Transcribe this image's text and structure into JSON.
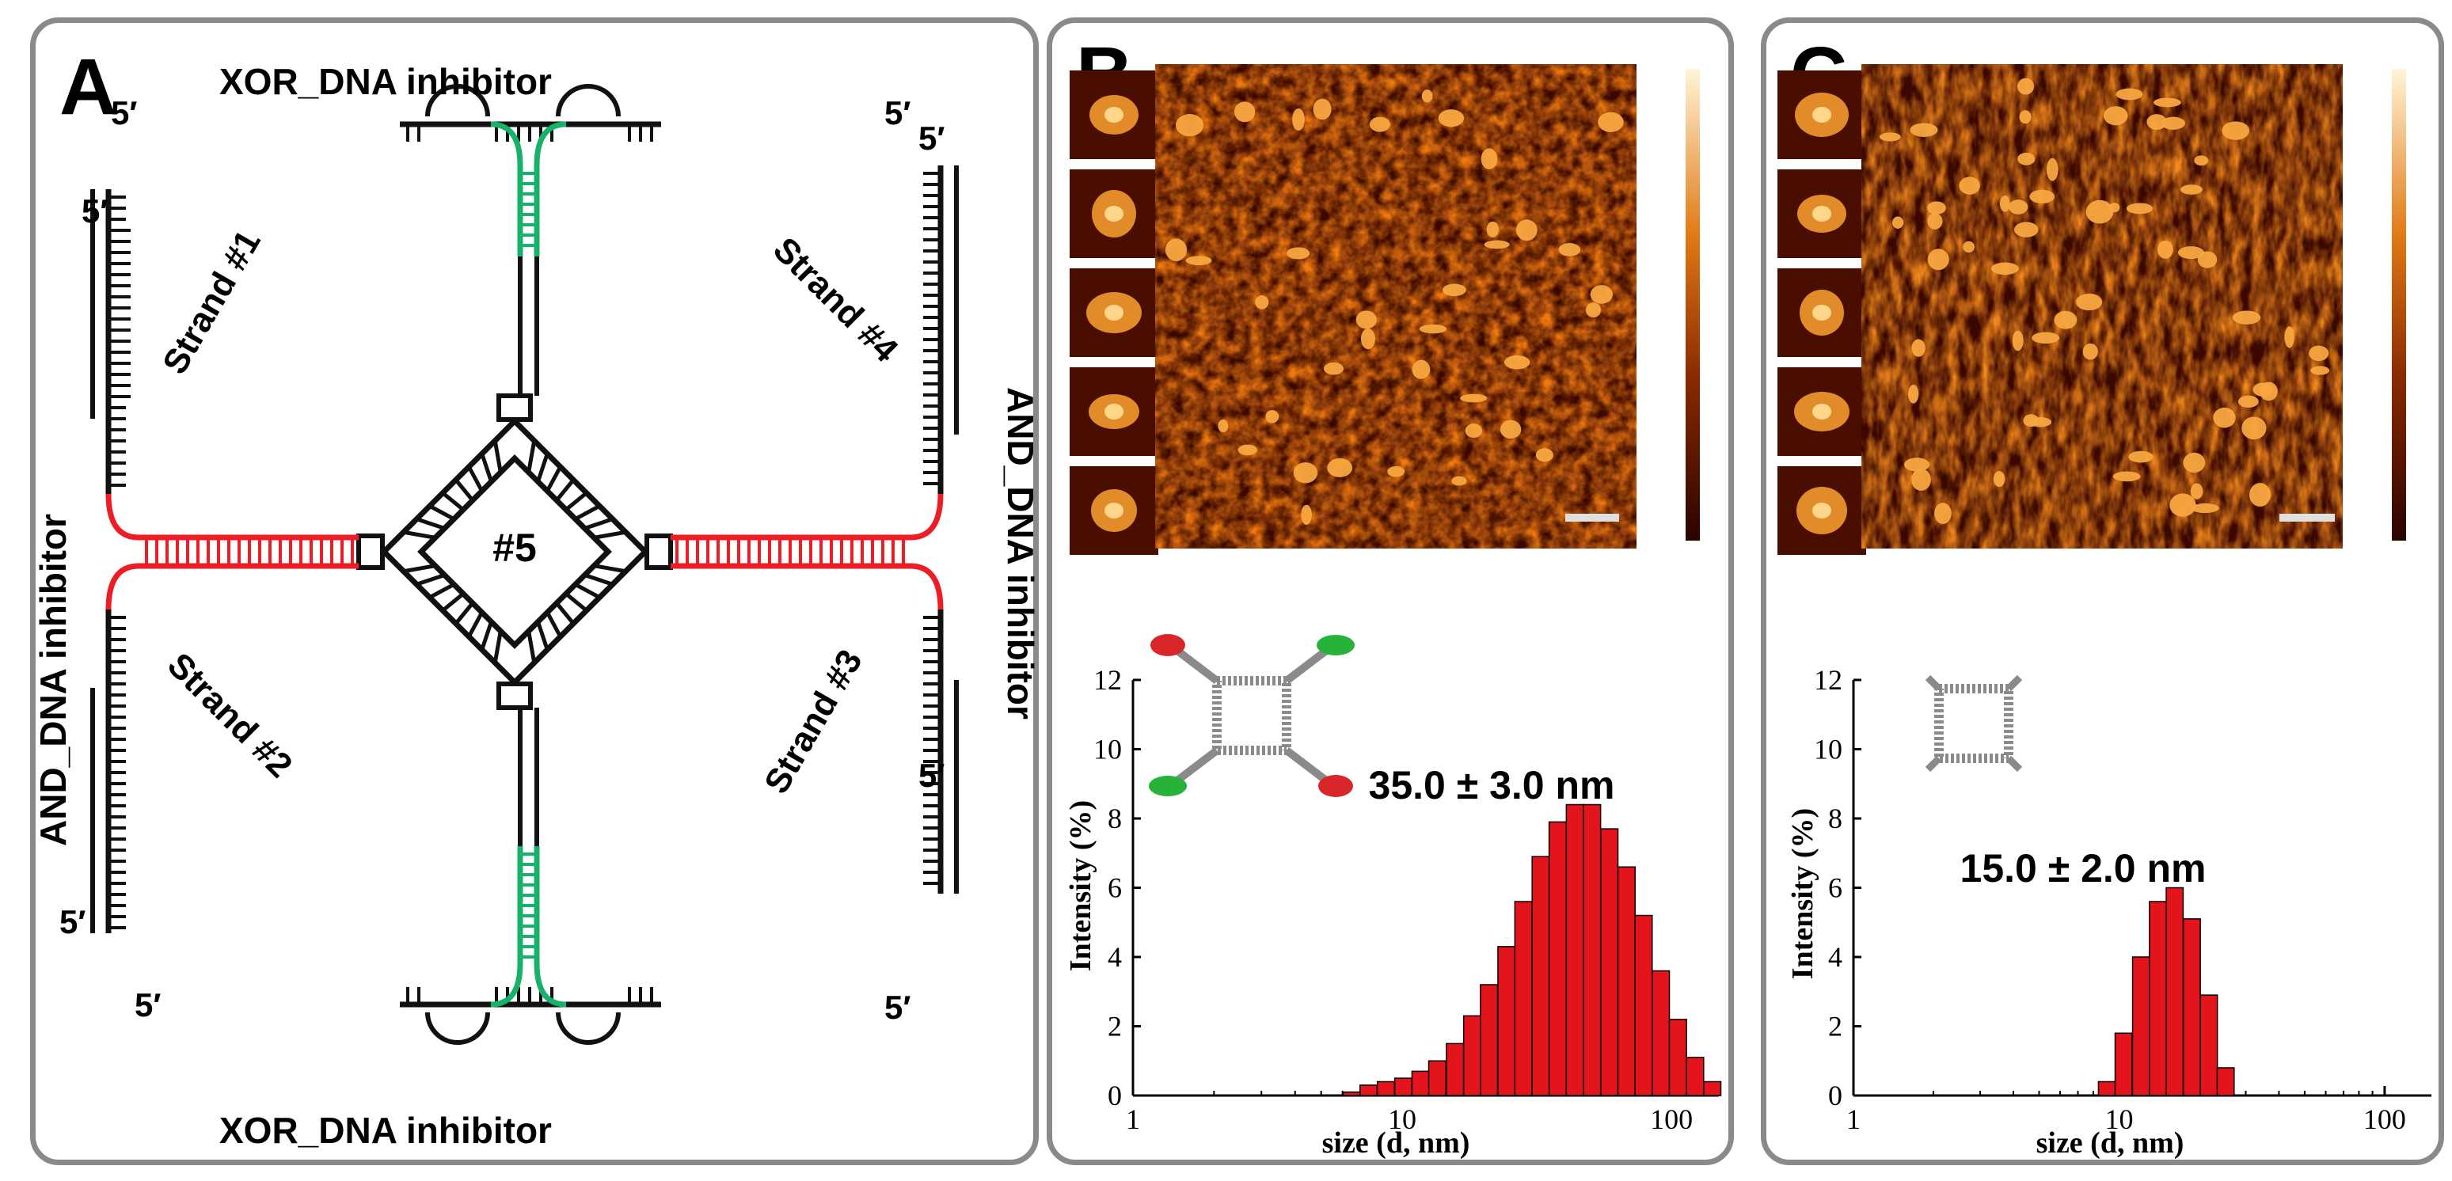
{
  "panels": {
    "a": {
      "letter": "A",
      "top_label": "XOR_DNA inhibitor",
      "bottom_label": "XOR_DNA inhibitor",
      "left_label": "AND_DNA inhibitor",
      "right_label": "AND_DNA inhibitor",
      "strand1": "Strand #1",
      "strand2": "Strand #2",
      "strand3": "Strand #3",
      "strand4": "Strand #4",
      "center": "#5",
      "prime": "5′",
      "colors": {
        "green": "#17b26a",
        "red": "#ee1c25",
        "black": "#111111"
      }
    },
    "b": {
      "letter": "B",
      "size_label": "35.0 ± 3.0 nm",
      "xlabel": "size (d, nm)",
      "ylabel": "Intensity (%)"
    },
    "c": {
      "letter": "C",
      "size_label": "15.0 ± 2.0 nm",
      "xlabel": "size (d, nm)",
      "ylabel": "Intensity (%)"
    }
  },
  "chart_data": [
    {
      "type": "bar",
      "panel": "B",
      "xscale": "log",
      "xlim": [
        1,
        150
      ],
      "ylim": [
        0,
        12
      ],
      "xticks": [
        "1",
        "10",
        "100"
      ],
      "yticks": [
        "0",
        "2",
        "4",
        "6",
        "8",
        "10",
        "12"
      ],
      "xlabel": "size (d, nm)",
      "ylabel": "Intensity (%)",
      "bar_color": "#e3141b",
      "x": [
        6.5,
        7.5,
        8.7,
        10.1,
        11.7,
        13.5,
        15.7,
        18.2,
        21.0,
        24.4,
        28.2,
        32.7,
        37.8,
        43.8,
        50.7,
        58.8,
        68.1,
        78.8,
        91.3,
        105.7,
        122.4,
        141.8
      ],
      "values": [
        0.1,
        0.3,
        0.4,
        0.5,
        0.7,
        1.0,
        1.5,
        2.3,
        3.2,
        4.3,
        5.6,
        6.9,
        7.9,
        8.4,
        8.4,
        7.7,
        6.6,
        5.2,
        3.6,
        2.2,
        1.1,
        0.4
      ]
    },
    {
      "type": "bar",
      "panel": "C",
      "xscale": "log",
      "xlim": [
        1,
        150
      ],
      "ylim": [
        0,
        12
      ],
      "xticks": [
        "1",
        "10",
        "100"
      ],
      "yticks": [
        "0",
        "2",
        "4",
        "6",
        "8",
        "10",
        "12"
      ],
      "xlabel": "size (d, nm)",
      "ylabel": "Intensity (%)",
      "bar_color": "#e3141b",
      "x": [
        9.0,
        10.4,
        12.1,
        14.0,
        16.2,
        18.8,
        21.8,
        25.2
      ],
      "values": [
        0.4,
        1.8,
        4.0,
        5.6,
        6.0,
        5.1,
        2.9,
        0.8
      ]
    }
  ]
}
